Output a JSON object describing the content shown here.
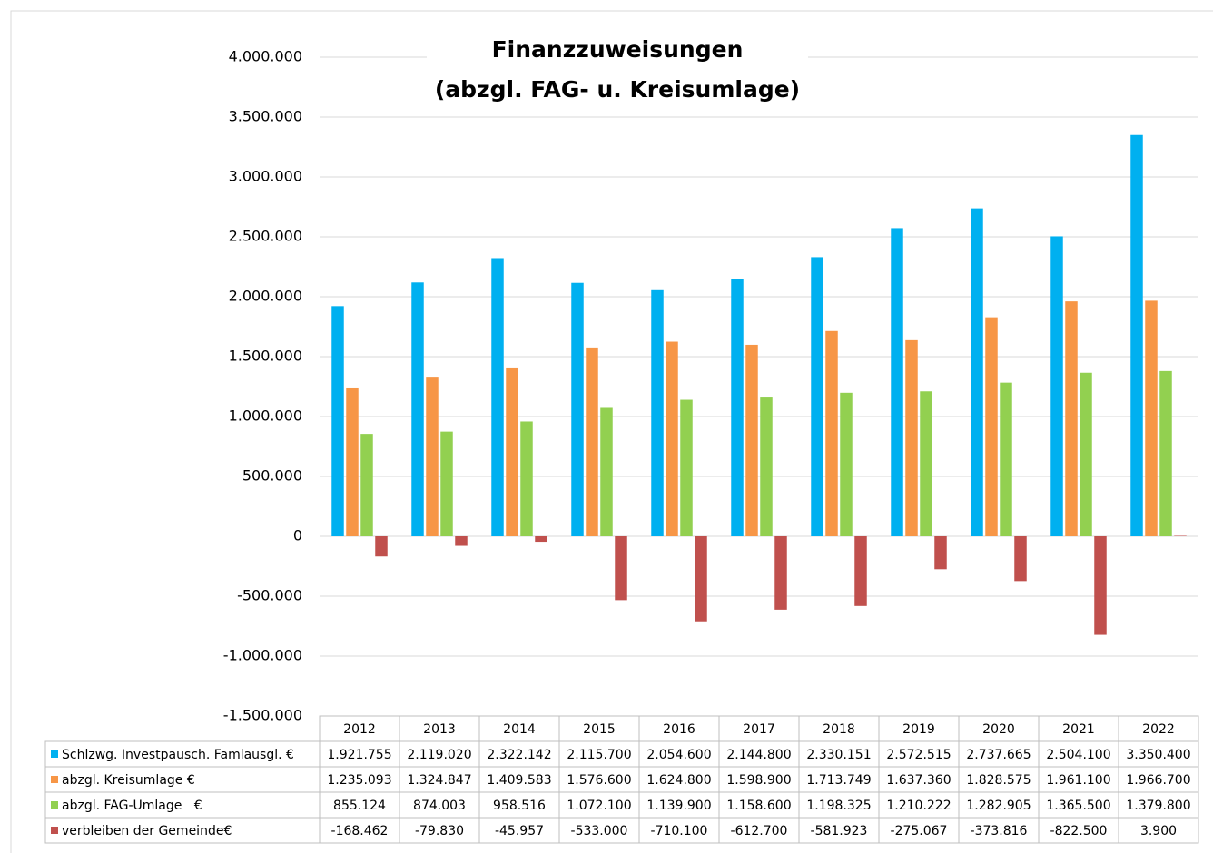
{
  "chart_data": {
    "type": "bar",
    "title": "Finanzzuweisungen",
    "subtitle": "(abzgl. FAG- u. Kreisumlage)",
    "categories": [
      "2012",
      "2013",
      "2014",
      "2015",
      "2016",
      "2017",
      "2018",
      "2019",
      "2020",
      "2021",
      "2022"
    ],
    "series": [
      {
        "name": "Schlzwg. Investpausch. Famlausgl. €",
        "color": "#00b0f0",
        "values": [
          1921755,
          2119020,
          2322142,
          2115700,
          2054600,
          2144800,
          2330151,
          2572515,
          2737665,
          2504100,
          3350400
        ],
        "value_labels": [
          "1.921.755",
          "2.119.020",
          "2.322.142",
          "2.115.700",
          "2.054.600",
          "2.144.800",
          "2.330.151",
          "2.572.515",
          "2.737.665",
          "2.504.100",
          "3.350.400"
        ]
      },
      {
        "name": "abzgl. Kreisumlage €",
        "color": "#f79646",
        "values": [
          1235093,
          1324847,
          1409583,
          1576600,
          1624800,
          1598900,
          1713749,
          1637360,
          1828575,
          1961100,
          1966700
        ],
        "value_labels": [
          "1.235.093",
          "1.324.847",
          "1.409.583",
          "1.576.600",
          "1.624.800",
          "1.598.900",
          "1.713.749",
          "1.637.360",
          "1.828.575",
          "1.961.100",
          "1.966.700"
        ]
      },
      {
        "name": "abzgl. FAG-Umlage   €",
        "color": "#92d050",
        "values": [
          855124,
          874003,
          958516,
          1072100,
          1139900,
          1158600,
          1198325,
          1210222,
          1282905,
          1365500,
          1379800
        ],
        "value_labels": [
          "855.124",
          "874.003",
          "958.516",
          "1.072.100",
          "1.139.900",
          "1.158.600",
          "1.198.325",
          "1.210.222",
          "1.282.905",
          "1.365.500",
          "1.379.800"
        ]
      },
      {
        "name": "verbleiben der Gemeinde€",
        "color": "#c0504d",
        "values": [
          -168462,
          -79830,
          -45957,
          -533000,
          -710100,
          -612700,
          -581923,
          -275067,
          -373816,
          -822500,
          3900
        ],
        "value_labels": [
          "-168.462",
          "-79.830",
          "-45.957",
          "-533.000",
          "-710.100",
          "-612.700",
          "-581.923",
          "-275.067",
          "-373.816",
          "-822.500",
          "3.900"
        ]
      }
    ],
    "ylim": [
      -1500000,
      4000000
    ],
    "yticks": [
      {
        "value": -1500000,
        "label": "-1.500.000"
      },
      {
        "value": -1000000,
        "label": "-1.000.000"
      },
      {
        "value": -500000,
        "label": "-500.000"
      },
      0,
      {
        "value": 500000,
        "label": "500.000"
      },
      {
        "value": 1000000,
        "label": "1.000.000"
      },
      {
        "value": 1500000,
        "label": "1.500.000"
      },
      {
        "value": 2000000,
        "label": "2.000.000"
      },
      {
        "value": 2500000,
        "label": "2.500.000"
      },
      {
        "value": 3000000,
        "label": "3.000.000"
      },
      {
        "value": 3500000,
        "label": "3.500.000"
      },
      {
        "value": 4000000,
        "label": "4.000.000"
      }
    ],
    "grid": true
  }
}
